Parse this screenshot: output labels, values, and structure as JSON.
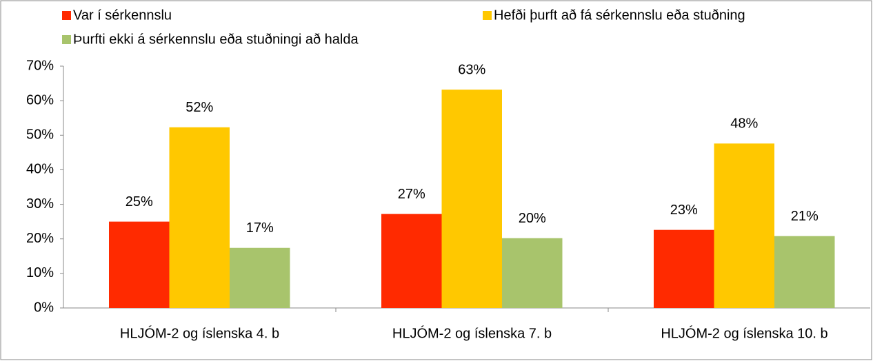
{
  "chart_data": {
    "type": "bar",
    "categories": [
      "HLJÓM-2 og íslenska 4. b",
      "HLJÓM-2 og íslenska 7. b",
      "HLJÓM-2 og íslenska 10. b"
    ],
    "series": [
      {
        "name": "Var í sérkennslu",
        "color": "#ff2a00",
        "values": [
          25,
          27.2,
          22.6
        ],
        "value_labels": [
          "25%",
          "27%",
          "23%"
        ]
      },
      {
        "name": "Hefði þurft að fá sérkennslu eða stuðning",
        "color": "#ffc800",
        "values": [
          52.3,
          63.2,
          47.6
        ],
        "value_labels": [
          "52%",
          "63%",
          "48%"
        ]
      },
      {
        "name": "Þurfti ekki á sérkennslu eða stuðningi að halda",
        "color": "#a8c46c",
        "values": [
          17.4,
          20.2,
          20.8
        ],
        "value_labels": [
          "17%",
          "20%",
          "21%"
        ]
      }
    ],
    "ylim": [
      0,
      70
    ],
    "yticks": [
      {
        "value": 0,
        "label": "0%"
      },
      {
        "value": 10,
        "label": "10%"
      },
      {
        "value": 20,
        "label": "20%"
      },
      {
        "value": 30,
        "label": "30%"
      },
      {
        "value": 40,
        "label": "40%"
      },
      {
        "value": 50,
        "label": "50%"
      },
      {
        "value": 60,
        "label": "60%"
      },
      {
        "value": 70,
        "label": "70%"
      }
    ],
    "grid": false
  }
}
